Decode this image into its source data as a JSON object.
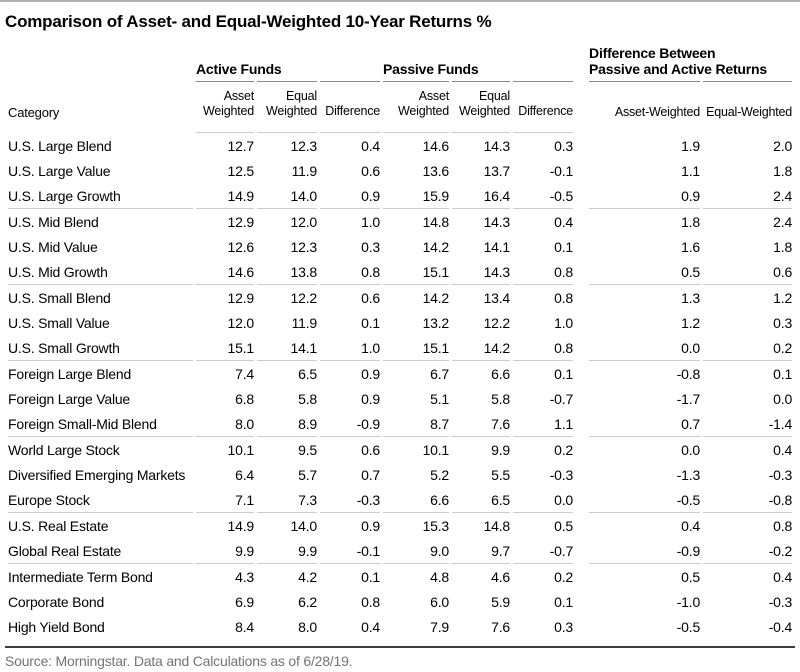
{
  "title": "Comparison of Asset- and Equal-Weighted 10-Year Returns %",
  "colors": {
    "top-rule": "#b1b1b1",
    "group-rule": "#8c8c8c",
    "light-rule": "#cccccc",
    "bottom-rule": "#3c3c3c",
    "text": "#000000",
    "source-text": "#737373",
    "bg": "#ffffff"
  },
  "chart_data": {
    "type": "table",
    "title": "Comparison of Asset- and Equal-Weighted 10-Year Returns %",
    "category_header": "Category",
    "groups": [
      {
        "label": "Active Funds",
        "columns": [
          "Asset Weighted",
          "Equal Weighted",
          "Difference"
        ]
      },
      {
        "label": "Passive Funds",
        "columns": [
          "Asset Weighted",
          "Equal Weighted",
          "Difference"
        ]
      },
      {
        "label": "Difference Between Passive and Active Returns",
        "label_lines": [
          "Difference Between",
          "Passive and Active Returns"
        ],
        "columns": [
          "Asset-Weighted",
          "Equal-Weighted"
        ]
      }
    ],
    "value_columns": [
      "Active Asset Weighted",
      "Active Equal Weighted",
      "Active Difference",
      "Passive Asset Weighted",
      "Passive Equal Weighted",
      "Passive Difference",
      "Difference Asset-Weighted",
      "Difference Equal-Weighted"
    ],
    "row_groups": [
      {
        "rows": [
          {
            "category": "U.S. Large Blend",
            "values": [
              "12.7",
              "12.3",
              "0.4",
              "14.6",
              "14.3",
              "0.3",
              "1.9",
              "2.0"
            ]
          },
          {
            "category": "U.S. Large Value",
            "values": [
              "12.5",
              "11.9",
              "0.6",
              "13.6",
              "13.7",
              "-0.1",
              "1.1",
              "1.8"
            ]
          },
          {
            "category": "U.S. Large Growth",
            "values": [
              "14.9",
              "14.0",
              "0.9",
              "15.9",
              "16.4",
              "-0.5",
              "0.9",
              "2.4"
            ]
          }
        ]
      },
      {
        "rows": [
          {
            "category": "U.S. Mid Blend",
            "values": [
              "12.9",
              "12.0",
              "1.0",
              "14.8",
              "14.3",
              "0.4",
              "1.8",
              "2.4"
            ]
          },
          {
            "category": "U.S. Mid Value",
            "values": [
              "12.6",
              "12.3",
              "0.3",
              "14.2",
              "14.1",
              "0.1",
              "1.6",
              "1.8"
            ]
          },
          {
            "category": "U.S. Mid Growth",
            "values": [
              "14.6",
              "13.8",
              "0.8",
              "15.1",
              "14.3",
              "0.8",
              "0.5",
              "0.6"
            ]
          }
        ]
      },
      {
        "rows": [
          {
            "category": "U.S. Small Blend",
            "values": [
              "12.9",
              "12.2",
              "0.6",
              "14.2",
              "13.4",
              "0.8",
              "1.3",
              "1.2"
            ]
          },
          {
            "category": "U.S. Small Value",
            "values": [
              "12.0",
              "11.9",
              "0.1",
              "13.2",
              "12.2",
              "1.0",
              "1.2",
              "0.3"
            ]
          },
          {
            "category": "U.S. Small Growth",
            "values": [
              "15.1",
              "14.1",
              "1.0",
              "15.1",
              "14.2",
              "0.8",
              "0.0",
              "0.2"
            ]
          }
        ]
      },
      {
        "rows": [
          {
            "category": "Foreign Large Blend",
            "values": [
              "7.4",
              "6.5",
              "0.9",
              "6.7",
              "6.6",
              "0.1",
              "-0.8",
              "0.1"
            ]
          },
          {
            "category": "Foreign Large Value",
            "values": [
              "6.8",
              "5.8",
              "0.9",
              "5.1",
              "5.8",
              "-0.7",
              "-1.7",
              "0.0"
            ]
          },
          {
            "category": "Foreign Small-Mid Blend",
            "values": [
              "8.0",
              "8.9",
              "-0.9",
              "8.7",
              "7.6",
              "1.1",
              "0.7",
              "-1.4"
            ]
          }
        ]
      },
      {
        "rows": [
          {
            "category": "World Large Stock",
            "values": [
              "10.1",
              "9.5",
              "0.6",
              "10.1",
              "9.9",
              "0.2",
              "0.0",
              "0.4"
            ]
          },
          {
            "category": "Diversified Emerging Markets",
            "values": [
              "6.4",
              "5.7",
              "0.7",
              "5.2",
              "5.5",
              "-0.3",
              "-1.3",
              "-0.3"
            ]
          },
          {
            "category": "Europe Stock",
            "values": [
              "7.1",
              "7.3",
              "-0.3",
              "6.6",
              "6.5",
              "0.0",
              "-0.5",
              "-0.8"
            ]
          }
        ]
      },
      {
        "rows": [
          {
            "category": "U.S. Real Estate",
            "values": [
              "14.9",
              "14.0",
              "0.9",
              "15.3",
              "14.8",
              "0.5",
              "0.4",
              "0.8"
            ]
          },
          {
            "category": "Global Real Estate",
            "values": [
              "9.9",
              "9.9",
              "-0.1",
              "9.0",
              "9.7",
              "-0.7",
              "-0.9",
              "-0.2"
            ]
          }
        ]
      },
      {
        "rows": [
          {
            "category": "Intermediate Term Bond",
            "values": [
              "4.3",
              "4.2",
              "0.1",
              "4.8",
              "4.6",
              "0.2",
              "0.5",
              "0.4"
            ]
          },
          {
            "category": "Corporate Bond",
            "values": [
              "6.9",
              "6.2",
              "0.8",
              "6.0",
              "5.9",
              "0.1",
              "-1.0",
              "-0.3"
            ]
          },
          {
            "category": "High Yield Bond",
            "values": [
              "8.4",
              "8.0",
              "0.4",
              "7.9",
              "7.6",
              "0.3",
              "-0.5",
              "-0.4"
            ]
          }
        ]
      }
    ],
    "source": "Source: Morningstar. Data and Calculations as of 6/28/19."
  }
}
